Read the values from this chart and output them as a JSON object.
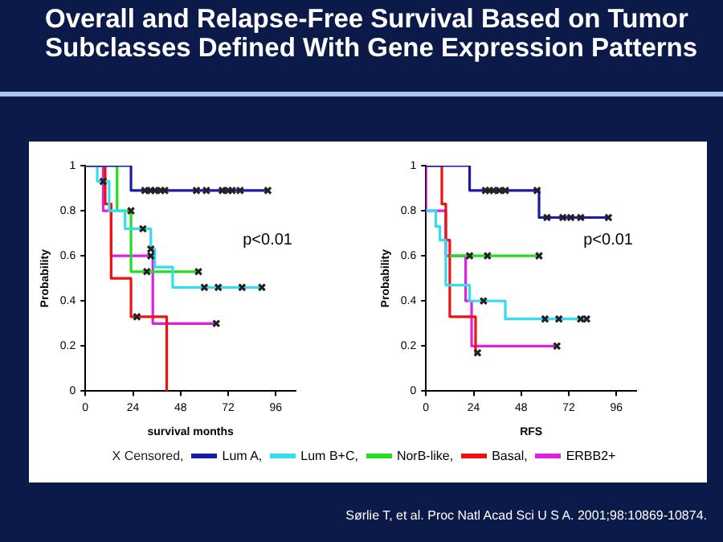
{
  "chart_data": [
    {
      "type": "step",
      "title": "Overall and Relapse-Free Survival Based on Tumor Subclasses Defined With Gene Expression Patterns",
      "xlabel": "survival months",
      "ylabel": "Probability",
      "xlim": [
        0,
        106
      ],
      "xticks": [
        0,
        24,
        48,
        72,
        96
      ],
      "ylim": [
        0,
        1
      ],
      "yticks": [
        0,
        0.2,
        0.4,
        0.6,
        0.8,
        1
      ],
      "grid": false,
      "legend": "bottom",
      "annotations": [
        "p<0.01"
      ],
      "series": [
        {
          "name": "X Censored,",
          "type": "scatter",
          "marker": "cross",
          "color": "#222222",
          "x": [
            30,
            33,
            35,
            38,
            40,
            56,
            61,
            69,
            72,
            74,
            78,
            92,
            9,
            29,
            33,
            60,
            67,
            79,
            89,
            23,
            31,
            57,
            26,
            33,
            66
          ],
          "values": [
            0.89,
            0.89,
            0.89,
            0.89,
            0.89,
            0.89,
            0.89,
            0.89,
            0.89,
            0.89,
            0.89,
            0.89,
            0.93,
            0.72,
            0.63,
            0.46,
            0.46,
            0.46,
            0.46,
            0.8,
            0.53,
            0.53,
            0.33,
            0.6,
            0.3
          ]
        },
        {
          "name": "Lum A,",
          "color": "#1a1aa8",
          "x": [
            0,
            23,
            92
          ],
          "values": [
            1,
            0.89,
            0.89
          ]
        },
        {
          "name": "Lum B+C,",
          "color": "#33ddee",
          "x": [
            0,
            6,
            12,
            20,
            33,
            35,
            44,
            89
          ],
          "values": [
            1,
            0.93,
            0.8,
            0.72,
            0.63,
            0.55,
            0.46,
            0.46
          ]
        },
        {
          "name": "NorB-like,",
          "color": "#22dd22",
          "x": [
            0,
            16,
            23,
            57
          ],
          "values": [
            1,
            0.8,
            0.53,
            0.53
          ]
        },
        {
          "name": "Basal,",
          "color": "#ee1111",
          "x": [
            0,
            10,
            13,
            23,
            41
          ],
          "values": [
            1,
            0.83,
            0.5,
            0.33,
            0
          ]
        },
        {
          "name": "ERBB2+",
          "color": "#dd22dd",
          "x": [
            0,
            9,
            13,
            34,
            66
          ],
          "values": [
            1,
            0.8,
            0.6,
            0.3,
            0.3
          ]
        }
      ]
    },
    {
      "type": "step",
      "xlabel": "RFS",
      "ylabel": "Probability",
      "xlim": [
        0,
        106
      ],
      "xticks": [
        0,
        24,
        48,
        72,
        96
      ],
      "ylim": [
        0,
        1
      ],
      "yticks": [
        0,
        0.2,
        0.4,
        0.6,
        0.8,
        1
      ],
      "grid": false,
      "annotations": [
        "p<0.01",
        "Sørlie T, et al. Proc Natl Acad Sci U S A. 2001;98:10869-10874."
      ],
      "series": [
        {
          "type": "scatter",
          "marker": "cross",
          "color": "#222222",
          "x": [
            30,
            32,
            34,
            37,
            40,
            56,
            61,
            69,
            73,
            78,
            92,
            29,
            60,
            67,
            78,
            81,
            22,
            31,
            57,
            26,
            66
          ],
          "values": [
            0.89,
            0.89,
            0.89,
            0.89,
            0.89,
            0.89,
            0.77,
            0.77,
            0.77,
            0.77,
            0.77,
            0.4,
            0.32,
            0.32,
            0.32,
            0.32,
            0.6,
            0.6,
            0.6,
            0.17,
            0.2
          ]
        },
        {
          "color": "#22dd22",
          "x": [
            12,
            57
          ],
          "values": [
            0.6,
            0.6
          ]
        },
        {
          "color": "#1a1aa8",
          "x": [
            0,
            22,
            57,
            92
          ],
          "values": [
            1,
            0.89,
            0.77,
            0.77
          ]
        },
        {
          "color": "#33ddee",
          "x": [
            0,
            5,
            7,
            10,
            22,
            40,
            81
          ],
          "values": [
            0.8,
            0.73,
            0.67,
            0.47,
            0.4,
            0.32,
            0.32
          ]
        },
        {
          "color": "#ee1111",
          "x": [
            0,
            8,
            10,
            12,
            25,
            26
          ],
          "values": [
            1,
            0.83,
            0.67,
            0.33,
            0.17,
            0.17
          ]
        },
        {
          "color": "#dd22dd",
          "x": [
            0,
            0,
            10,
            20,
            23,
            66
          ],
          "values": [
            1,
            0.8,
            0.6,
            0.4,
            0.2,
            0.2
          ]
        }
      ]
    }
  ]
}
